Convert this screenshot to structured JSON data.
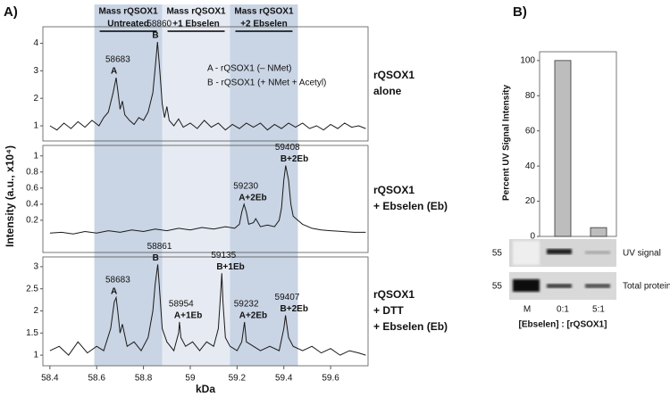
{
  "panel_labels": [
    "A)",
    "B)"
  ],
  "chart_data": [
    {
      "type": "line",
      "ylabel": "Intensity (a.u., x10⁴)",
      "side_label": [
        "rQSOX1",
        "alone"
      ],
      "notes": [
        "A - rQSOX1 (– NMet)",
        "B - rQSOX1 (+ NMet + Acetyl)"
      ],
      "regions": [
        {
          "label": [
            "Mass rQSOX1",
            "Untreated"
          ],
          "xlim": [
            58.59,
            58.88
          ],
          "color": "#c9d4e4"
        },
        {
          "label": [
            "Mass rQSOX1",
            "+1 Ebselen"
          ],
          "xlim": [
            58.88,
            59.17
          ],
          "color": "#e6ebf3"
        },
        {
          "label": [
            "Mass rQSOX1",
            "+2 Ebselen"
          ],
          "xlim": [
            59.17,
            59.46
          ],
          "color": "#c9d4e4"
        }
      ],
      "color": "#1a1a1a",
      "xlim": [
        58.37,
        59.76
      ],
      "ylim": [
        0.45,
        4.6
      ],
      "yticks": [
        1,
        2,
        3,
        4
      ],
      "x": [
        58.4,
        58.43,
        58.46,
        58.49,
        58.52,
        58.55,
        58.58,
        58.61,
        58.63,
        58.65,
        58.67,
        58.683,
        58.69,
        58.7,
        58.71,
        58.72,
        58.74,
        58.76,
        58.78,
        58.8,
        58.82,
        58.84,
        58.85,
        58.86,
        58.87,
        58.88,
        58.89,
        58.9,
        58.91,
        58.93,
        58.95,
        58.97,
        59.0,
        59.03,
        59.06,
        59.09,
        59.12,
        59.15,
        59.18,
        59.21,
        59.24,
        59.27,
        59.3,
        59.33,
        59.36,
        59.39,
        59.42,
        59.45,
        59.48,
        59.51,
        59.54,
        59.57,
        59.6,
        59.63,
        59.66,
        59.69,
        59.72,
        59.75
      ],
      "values": [
        1.0,
        0.85,
        1.1,
        0.9,
        1.15,
        0.95,
        1.2,
        1.0,
        1.3,
        1.5,
        2.2,
        2.75,
        2.3,
        1.6,
        1.9,
        1.4,
        1.2,
        1.05,
        1.3,
        1.2,
        1.5,
        2.2,
        3.1,
        4.05,
        3.0,
        1.8,
        1.3,
        1.7,
        1.2,
        1.0,
        1.25,
        0.95,
        1.1,
        0.9,
        1.2,
        0.95,
        1.1,
        0.85,
        1.05,
        0.9,
        1.1,
        0.95,
        1.1,
        0.85,
        1.05,
        0.9,
        1.1,
        0.95,
        1.1,
        0.9,
        1.0,
        0.85,
        1.05,
        0.9,
        1.1,
        0.95,
        1.0,
        0.9
      ],
      "annotations": [
        {
          "x": 58.683,
          "y": 2.75,
          "text": [
            "58683",
            "A"
          ]
        },
        {
          "x": 58.86,
          "y": 4.05,
          "text": [
            "58860",
            "B"
          ]
        }
      ]
    },
    {
      "type": "line",
      "side_label": [
        "rQSOX1",
        "+ Ebselen (Eb)"
      ],
      "color": "#1a1a1a",
      "xlim": [
        58.37,
        59.76
      ],
      "ylim": [
        -0.2,
        1.13
      ],
      "yticks": [
        0.2,
        0.4,
        0.6,
        0.8,
        1
      ],
      "x": [
        58.4,
        58.45,
        58.5,
        58.55,
        58.6,
        58.65,
        58.7,
        58.75,
        58.8,
        58.85,
        58.9,
        58.95,
        59.0,
        59.05,
        59.1,
        59.15,
        59.19,
        59.21,
        59.22,
        59.23,
        59.24,
        59.25,
        59.27,
        59.28,
        59.3,
        59.33,
        59.36,
        59.38,
        59.39,
        59.4,
        59.408,
        59.42,
        59.43,
        59.44,
        59.46,
        59.48,
        59.52,
        59.56,
        59.6,
        59.65,
        59.7,
        59.75
      ],
      "values": [
        0.04,
        0.05,
        0.03,
        0.06,
        0.04,
        0.07,
        0.05,
        0.08,
        0.06,
        0.09,
        0.07,
        0.1,
        0.08,
        0.11,
        0.09,
        0.12,
        0.1,
        0.15,
        0.3,
        0.4,
        0.3,
        0.15,
        0.17,
        0.22,
        0.12,
        0.14,
        0.12,
        0.2,
        0.35,
        0.7,
        0.88,
        0.7,
        0.4,
        0.25,
        0.2,
        0.15,
        0.1,
        0.08,
        0.07,
        0.06,
        0.05,
        0.05
      ],
      "annotations": [
        {
          "x": 59.23,
          "y": 0.4,
          "text": [
            "59230",
            "A+2Eb"
          ]
        },
        {
          "x": 59.408,
          "y": 0.88,
          "text": [
            "59408",
            "B+2Eb"
          ]
        }
      ]
    },
    {
      "type": "line",
      "side_label": [
        "rQSOX1",
        "+ DTT",
        "+ Ebselen (Eb)"
      ],
      "xlabel": "kDa",
      "color": "#1a1a1a",
      "xlim": [
        58.37,
        59.76
      ],
      "xticks": [
        58.4,
        58.6,
        58.8,
        {
          "value": 59,
          "label": "59"
        },
        59.2,
        59.4,
        59.6
      ],
      "ylim": [
        0.76,
        3.22
      ],
      "yticks": [
        1,
        1.5,
        2,
        2.5,
        3
      ],
      "x": [
        58.4,
        58.44,
        58.48,
        58.52,
        58.56,
        58.6,
        58.63,
        58.66,
        58.675,
        58.683,
        58.69,
        58.7,
        58.71,
        58.73,
        58.76,
        58.79,
        58.82,
        58.84,
        58.85,
        58.861,
        58.87,
        58.88,
        58.9,
        58.93,
        58.95,
        58.954,
        58.96,
        58.98,
        59.01,
        59.04,
        59.07,
        59.1,
        59.12,
        59.13,
        59.135,
        59.14,
        59.15,
        59.17,
        59.2,
        59.22,
        59.232,
        59.24,
        59.27,
        59.3,
        59.34,
        59.38,
        59.4,
        59.407,
        59.42,
        59.44,
        59.48,
        59.52,
        59.56,
        59.6,
        59.64,
        59.68,
        59.72,
        59.75
      ],
      "values": [
        1.1,
        1.2,
        1.0,
        1.3,
        1.05,
        1.2,
        1.1,
        1.6,
        2.2,
        2.3,
        2.0,
        1.5,
        1.7,
        1.2,
        1.3,
        1.1,
        1.4,
        2.0,
        2.6,
        3.05,
        2.4,
        1.6,
        1.3,
        1.1,
        1.5,
        1.75,
        1.4,
        1.2,
        1.3,
        1.1,
        1.3,
        1.2,
        1.6,
        2.4,
        2.85,
        2.2,
        1.4,
        1.2,
        1.1,
        1.3,
        1.75,
        1.3,
        1.2,
        1.1,
        1.2,
        1.1,
        1.6,
        1.9,
        1.4,
        1.2,
        1.1,
        1.2,
        1.05,
        1.15,
        1.0,
        1.1,
        1.05,
        1.0
      ],
      "annotations": [
        {
          "x": 58.683,
          "y": 2.3,
          "text": [
            "58683",
            "A"
          ]
        },
        {
          "x": 58.861,
          "y": 3.05,
          "text": [
            "58861",
            "B"
          ]
        },
        {
          "x": 58.954,
          "y": 1.75,
          "text": [
            "58954",
            "A+1Eb"
          ]
        },
        {
          "x": 59.135,
          "y": 2.85,
          "text": [
            "59135",
            "B+1Eb"
          ]
        },
        {
          "x": 59.232,
          "y": 1.75,
          "text": [
            "59232",
            "A+2Eb"
          ]
        },
        {
          "x": 59.407,
          "y": 1.9,
          "text": [
            "59407",
            "B+2Eb"
          ]
        }
      ]
    },
    {
      "type": "bar",
      "ylabel": "Percent UV Signal Intensity",
      "categories": [
        "M",
        "0:1",
        "5:1"
      ],
      "values": [
        null,
        100,
        5
      ],
      "color": "#bdbdbd",
      "ylim": [
        0,
        105
      ],
      "yticks": [
        0,
        20,
        40,
        60,
        80,
        100
      ],
      "gel_rows": [
        "UV signal",
        "Total protein"
      ],
      "gel_marker": "55",
      "xlabel": "[Ebselen] : [rQSOX1]"
    }
  ]
}
